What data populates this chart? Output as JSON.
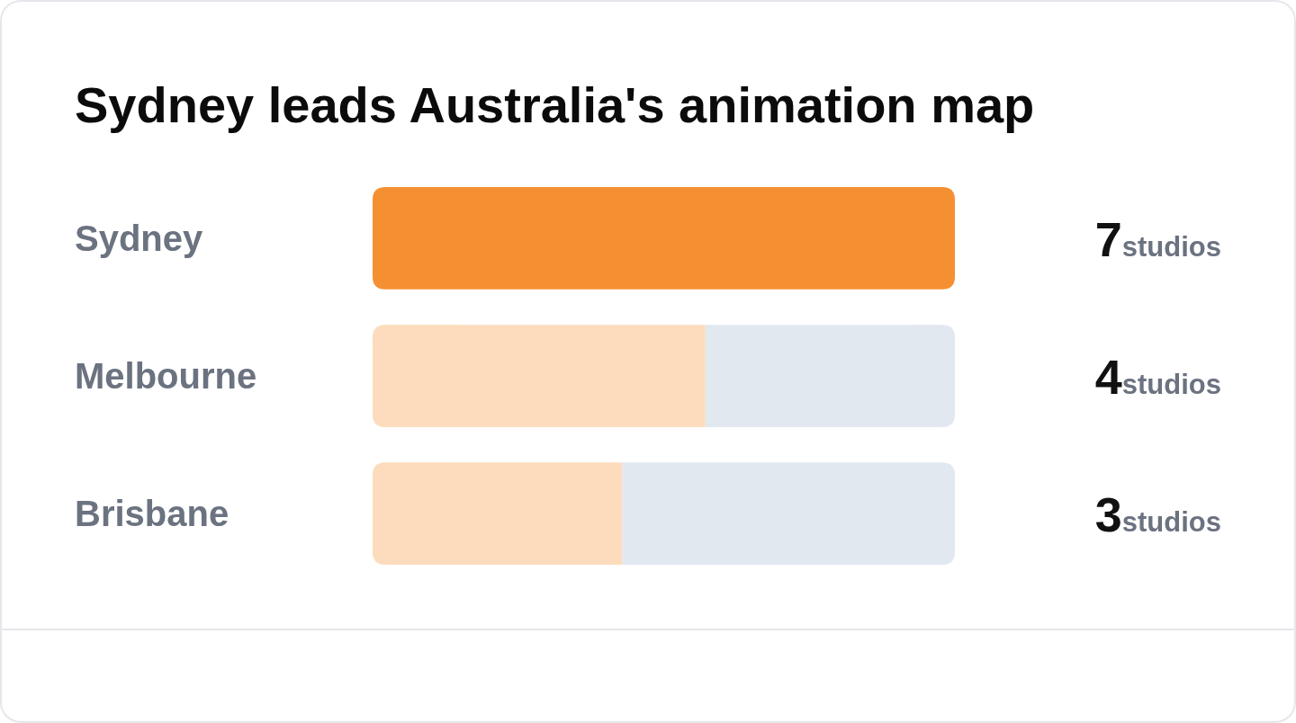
{
  "chart_data": {
    "type": "bar",
    "orientation": "horizontal",
    "title": "Sydney leads Australia's animation map",
    "categories": [
      "Sydney",
      "Melbourne",
      "Brisbane"
    ],
    "values": [
      7,
      4,
      3
    ],
    "colors": [
      "#f59032",
      "#fcdcbc",
      "#fcdcbc"
    ],
    "xlim": [
      0,
      7
    ],
    "value_labels": [
      "7studios",
      "4studios",
      "3studios"
    ]
  }
}
